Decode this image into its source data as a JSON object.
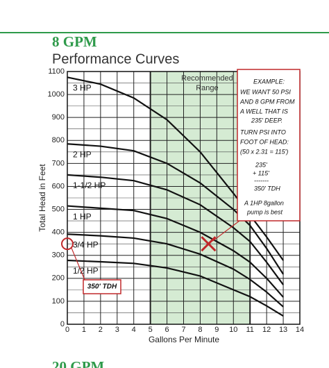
{
  "chart_data": {
    "type": "line",
    "title": "8 GPM",
    "subtitle": "Performance Curves",
    "x_label": "Gallons Per Minute",
    "y_label": "Total Head in Feet",
    "x": [
      0,
      2,
      4,
      6,
      8,
      10,
      11,
      12,
      13
    ],
    "series": [
      {
        "name": "3 HP",
        "color": "#111111",
        "values": [
          1075,
          1045,
          985,
          890,
          750,
          570,
          475,
          380,
          278
        ]
      },
      {
        "name": "2 HP",
        "color": "#111111",
        "values": [
          785,
          775,
          755,
          700,
          615,
          500,
          430,
          330,
          218
        ]
      },
      {
        "name": "1-1/2 HP",
        "color": "#111111",
        "values": [
          650,
          640,
          625,
          585,
          520,
          420,
          360,
          270,
          172
        ]
      },
      {
        "name": "1 HP",
        "color": "#111111",
        "values": [
          515,
          505,
          495,
          460,
          400,
          320,
          270,
          200,
          118
        ]
      },
      {
        "name": "3/4 HP",
        "color": "#111111",
        "values": [
          392,
          385,
          375,
          350,
          305,
          240,
          195,
          140,
          76
        ]
      },
      {
        "name": "1/2 HP",
        "color": "#111111",
        "values": [
          278,
          272,
          265,
          245,
          210,
          150,
          120,
          80,
          36
        ]
      }
    ],
    "xlim": [
      0,
      14
    ],
    "ylim": [
      0,
      1100
    ],
    "xticks": [
      0,
      1,
      2,
      3,
      4,
      5,
      6,
      7,
      8,
      9,
      10,
      11,
      12,
      13,
      14
    ],
    "yticks": [
      0,
      100,
      200,
      300,
      400,
      500,
      600,
      700,
      800,
      900,
      1000,
      1100
    ],
    "y_minor_ticks": [
      50,
      150,
      250,
      350,
      450,
      550,
      650,
      750,
      850,
      950,
      1050
    ],
    "grid": true,
    "recommended_range": {
      "x": [
        5,
        11
      ],
      "label": [
        "Recommended",
        "Range"
      ],
      "color": "#d5ebd3"
    },
    "example": {
      "lines": [
        "EXAMPLE:",
        "WE WANT 50 PSI",
        "AND 8 GPM FROM",
        "A  WELL THAT IS",
        "235' DEEP.",
        "TURN PSI INTO",
        "FOOT OF HEAD:",
        "(50 x 2.31 = 115')",
        "235'",
        "+ 115'",
        "-------",
        "350' TDH",
        "A 1HP 8gallon",
        "pump is best"
      ],
      "point": [
        8.5,
        350
      ],
      "color": "#c0282a"
    },
    "tdh_marker": {
      "value": 350,
      "label": "350' TDH"
    },
    "next_title": "20 GPM"
  }
}
